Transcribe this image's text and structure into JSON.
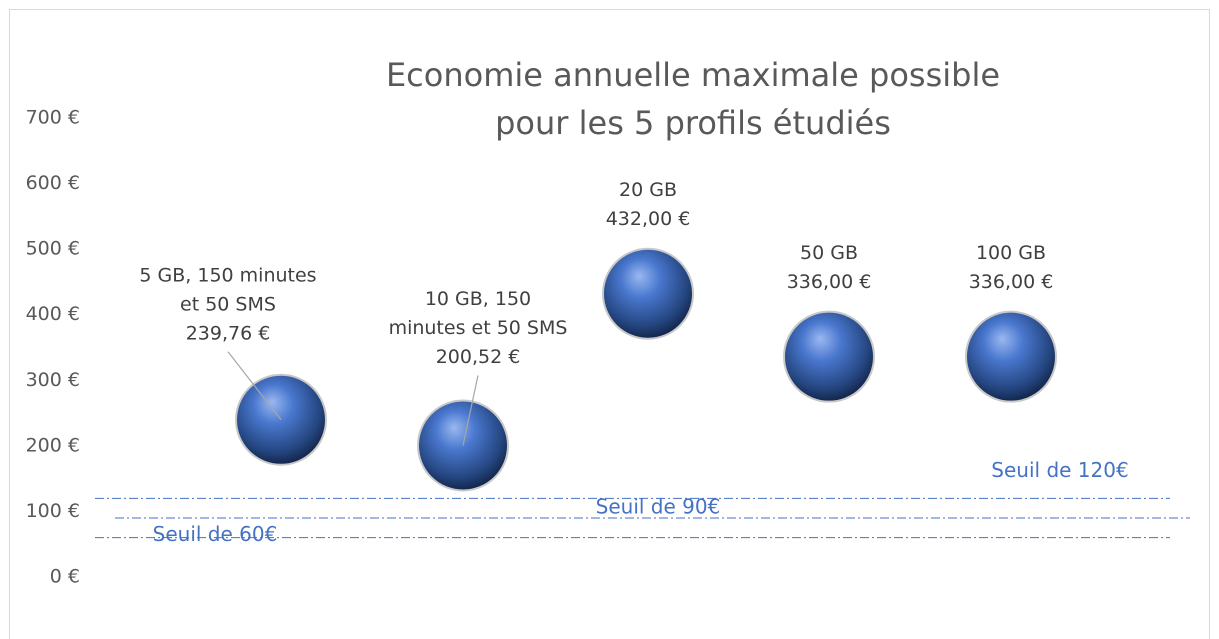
{
  "chart_data": {
    "type": "scatter",
    "title": [
      "Economie annuelle maximale possible",
      "pour les 5 profils étudiés"
    ],
    "categories": [
      [
        "5 GB, 150 minutes",
        "et  50 SMS"
      ],
      [
        "10 GB, 150",
        "minutes et 50 SMS"
      ],
      [
        "20 GB"
      ],
      [
        "50 GB"
      ],
      [
        "100 GB"
      ]
    ],
    "values": [
      239.76,
      200.52,
      432,
      336,
      336
    ],
    "value_labels": [
      "239,76 €",
      "200,52 €",
      "432,00 €",
      "336,00 €",
      "336,00 €"
    ],
    "color": "#4472c4",
    "ylim": [
      0,
      700
    ],
    "yticks": [
      {
        "value": 0,
        "label": "0 €"
      },
      {
        "value": 100,
        "label": "100 €"
      },
      {
        "value": 200,
        "label": "200 €"
      },
      {
        "value": 300,
        "label": "300 €"
      },
      {
        "value": 400,
        "label": "400 €"
      },
      {
        "value": 500,
        "label": "500 €"
      },
      {
        "value": 600,
        "label": "600 €"
      },
      {
        "value": 700,
        "label": "700 €"
      }
    ],
    "reference_lines": [
      {
        "value": 60,
        "label": "Seuil de 60€"
      },
      {
        "value": 90,
        "label": "Seuil de 90€"
      },
      {
        "value": 120,
        "label": "Seuil de 120€"
      }
    ],
    "grid": false
  }
}
